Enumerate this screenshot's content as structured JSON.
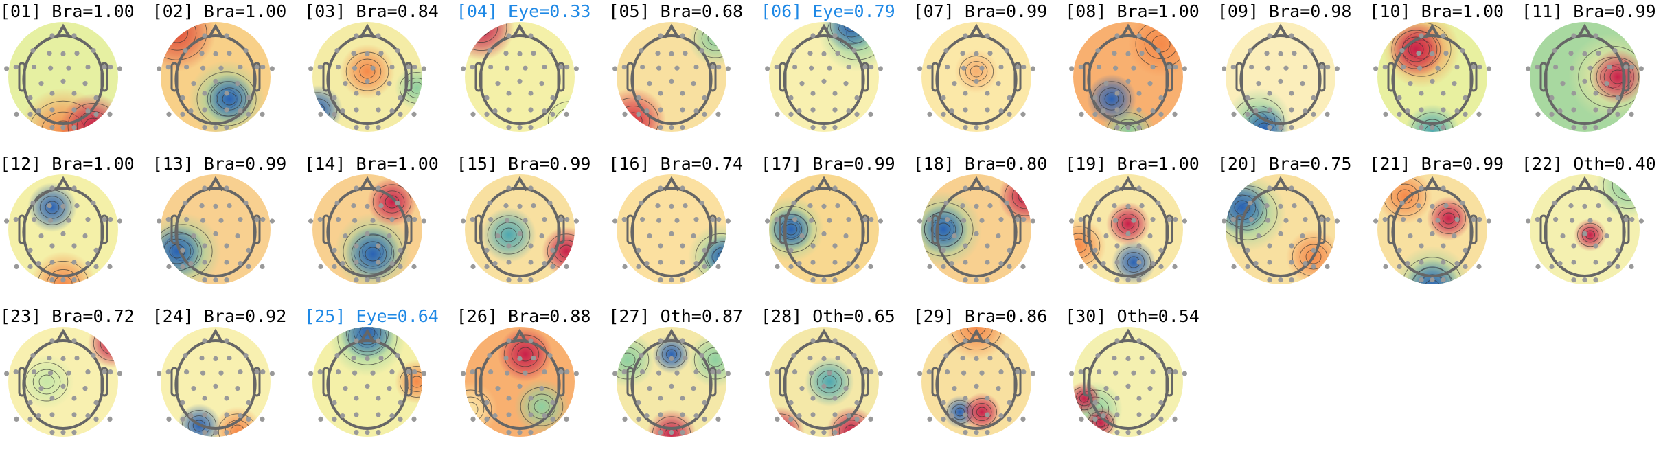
{
  "chart_data": {
    "type": "heatmap",
    "panels": [
      {
        "label": "[01] Bra=1.00",
        "class": "Bra",
        "prob": 1.0
      },
      {
        "label": "[02] Bra=1.00",
        "class": "Bra",
        "prob": 1.0
      },
      {
        "label": "[03] Bra=0.84",
        "class": "Bra",
        "prob": 0.84
      },
      {
        "label": "[04] Eye=0.33",
        "class": "Eye",
        "prob": 0.33
      },
      {
        "label": "[05] Bra=0.68",
        "class": "Bra",
        "prob": 0.68
      },
      {
        "label": "[06] Eye=0.79",
        "class": "Eye",
        "prob": 0.79
      },
      {
        "label": "[07] Bra=0.99",
        "class": "Bra",
        "prob": 0.99
      },
      {
        "label": "[08] Bra=1.00",
        "class": "Bra",
        "prob": 1.0
      },
      {
        "label": "[09] Bra=0.98",
        "class": "Bra",
        "prob": 0.98
      },
      {
        "label": "[10] Bra=1.00",
        "class": "Bra",
        "prob": 1.0
      },
      {
        "label": "[11] Bra=0.99",
        "class": "Bra",
        "prob": 0.99
      },
      {
        "label": "[12] Bra=1.00",
        "class": "Bra",
        "prob": 1.0
      },
      {
        "label": "[13] Bra=0.99",
        "class": "Bra",
        "prob": 0.99
      },
      {
        "label": "[14] Bra=1.00",
        "class": "Bra",
        "prob": 1.0
      },
      {
        "label": "[15] Bra=0.99",
        "class": "Bra",
        "prob": 0.99
      },
      {
        "label": "[16] Bra=0.74",
        "class": "Bra",
        "prob": 0.74
      },
      {
        "label": "[17] Bra=0.99",
        "class": "Bra",
        "prob": 0.99
      },
      {
        "label": "[18] Bra=0.80",
        "class": "Bra",
        "prob": 0.8
      },
      {
        "label": "[19] Bra=1.00",
        "class": "Bra",
        "prob": 1.0
      },
      {
        "label": "[20] Bra=0.75",
        "class": "Bra",
        "prob": 0.75
      },
      {
        "label": "[21] Bra=0.99",
        "class": "Bra",
        "prob": 0.99
      },
      {
        "label": "[22] Oth=0.40",
        "class": "Oth",
        "prob": 0.4
      },
      {
        "label": "[23] Bra=0.72",
        "class": "Bra",
        "prob": 0.72
      },
      {
        "label": "[24] Bra=0.92",
        "class": "Bra",
        "prob": 0.92
      },
      {
        "label": "[25] Eye=0.64",
        "class": "Eye",
        "prob": 0.64
      },
      {
        "label": "[26] Bra=0.88",
        "class": "Bra",
        "prob": 0.88
      },
      {
        "label": "[27] Oth=0.87",
        "class": "Oth",
        "prob": 0.87
      },
      {
        "label": "[28] Oth=0.65",
        "class": "Oth",
        "prob": 0.65
      },
      {
        "label": "[29] Bra=0.86",
        "class": "Bra",
        "prob": 0.86
      },
      {
        "label": "[30] Oth=0.54",
        "class": "Oth",
        "prob": 0.54
      }
    ],
    "colormap": "Spectral_r",
    "colors": {
      "label_default": "#000000",
      "label_eye": "#1e88e5",
      "head_outline": "#666666",
      "sensor": "#999999"
    }
  }
}
